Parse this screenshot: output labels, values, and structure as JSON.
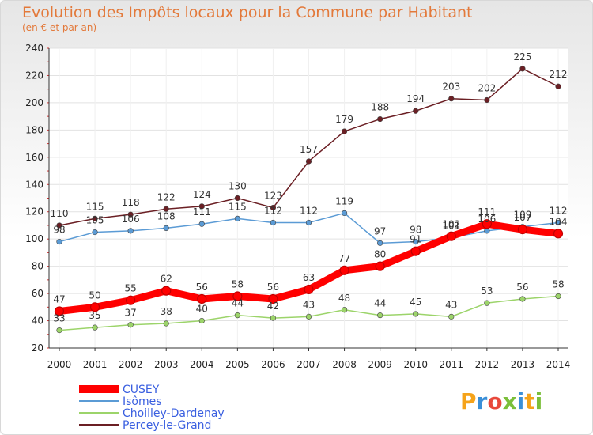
{
  "chart_data": {
    "type": "line",
    "title": "Evolution des Impôts locaux pour la Commune par Habitant",
    "subtitle": "(en € et par an)",
    "xlabel": "",
    "ylabel": "",
    "ylim": [
      20,
      240
    ],
    "yticks": [
      20,
      40,
      60,
      80,
      100,
      120,
      140,
      160,
      180,
      200,
      220,
      240
    ],
    "x": [
      "2000",
      "2001",
      "2002",
      "2003",
      "2004",
      "2005",
      "2006",
      "2007",
      "2008",
      "2009",
      "2010",
      "2011",
      "2012",
      "2013",
      "2014"
    ],
    "series": [
      {
        "name": "Percey-le-Grand",
        "color": "#6b1f24",
        "values": [
          110,
          115,
          118,
          122,
          124,
          130,
          123,
          157,
          179,
          188,
          194,
          203,
          202,
          225,
          212
        ]
      },
      {
        "name": "Isômes",
        "color": "#5b9bd5",
        "values": [
          98,
          105,
          106,
          108,
          111,
          115,
          112,
          112,
          119,
          97,
          98,
          101,
          106,
          109,
          112
        ]
      },
      {
        "name": "Choilley-Dardenay",
        "color": "#9cd46a",
        "values": [
          33,
          35,
          37,
          38,
          40,
          44,
          42,
          43,
          48,
          44,
          45,
          43,
          53,
          56,
          58
        ]
      },
      {
        "name": "CUSEY",
        "color": "#ff0000",
        "values": [
          47,
          50,
          55,
          62,
          56,
          58,
          56,
          63,
          77,
          80,
          91,
          102,
          111,
          107,
          104
        ]
      }
    ],
    "legend": [
      "CUSEY",
      "Isômes",
      "Choilley-Dardenay",
      "Percey-le-Grand"
    ],
    "legend_position": "bottom-left"
  },
  "logo": {
    "text": "Proxiti"
  }
}
